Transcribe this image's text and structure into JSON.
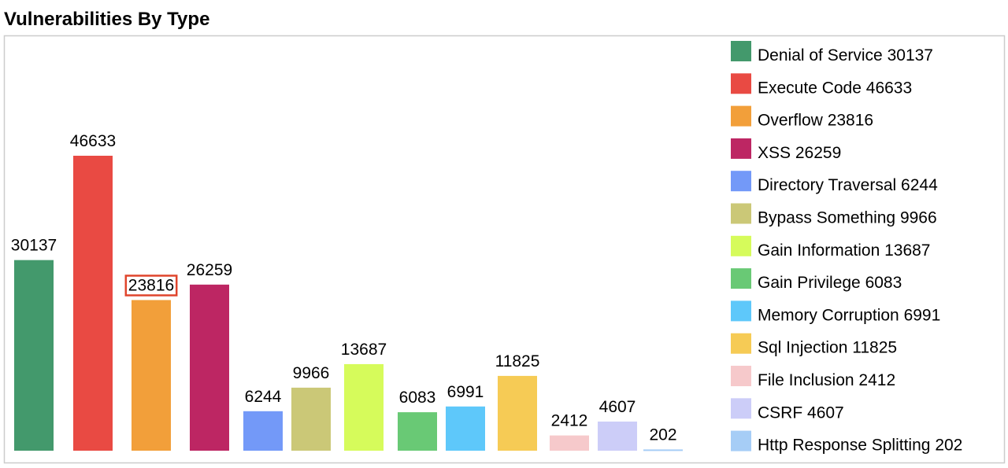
{
  "chart_data": {
    "type": "bar",
    "title": "Vulnerabilities By Type",
    "categories": [
      "Denial of Service",
      "Execute Code",
      "Overflow",
      "XSS",
      "Directory Traversal",
      "Bypass Something",
      "Gain Information",
      "Gain Privilege",
      "Memory Corruption",
      "Sql Injection",
      "File Inclusion",
      "CSRF",
      "Http Response Splitting"
    ],
    "values": [
      30137,
      46633,
      23816,
      26259,
      6244,
      9966,
      13687,
      6083,
      6991,
      11825,
      2412,
      4607,
      202
    ],
    "colors": [
      "#43996c",
      "#e94a43",
      "#f29f3a",
      "#bd2663",
      "#7399f8",
      "#cbc877",
      "#d6fb5b",
      "#69c975",
      "#5ec8fa",
      "#f6cb55",
      "#f6c9cb",
      "#cccdf8",
      "#a6cdf6"
    ]
  }
}
